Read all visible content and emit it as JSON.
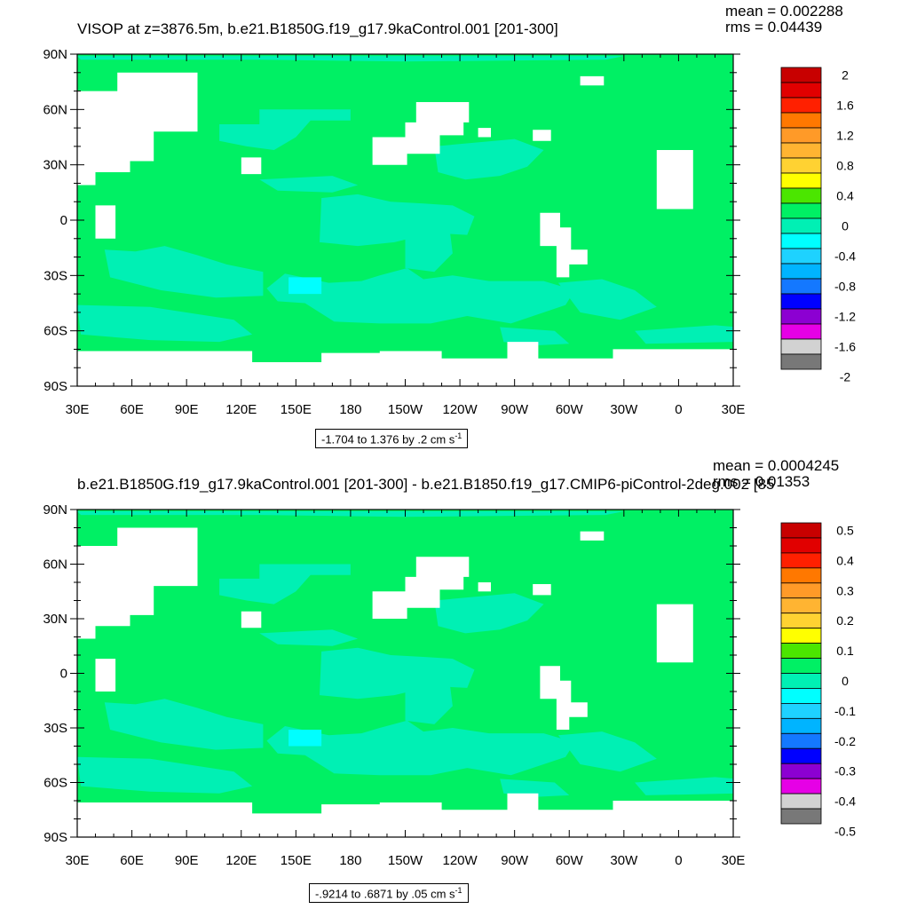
{
  "chart_data": [
    {
      "type": "heatmap",
      "map": "global lat-lon filled contour (land masked white)",
      "title": "VISOP at z=3876.5m, b.e21.B1850G.f19_g17.9kaControl.001 [201-300]",
      "stats": {
        "mean": "mean = 0.002288",
        "rms": "rms = 0.04439"
      },
      "x_ticks": [
        "30E",
        "60E",
        "90E",
        "120E",
        "150E",
        "180",
        "150W",
        "120W",
        "90W",
        "60W",
        "30W",
        "0",
        "30E"
      ],
      "y_ticks": [
        "90N",
        "60N",
        "30N",
        "0",
        "30S",
        "60S",
        "90S"
      ],
      "contour_info": {
        "text": "-1.704 to 1.376 by .2 cm s",
        "exp": "-1"
      },
      "colorbar_labels": [
        "2",
        "1.6",
        "1.2",
        "0.8",
        "0.4",
        "0",
        "-0.4",
        "-0.8",
        "-1.2",
        "-1.6",
        "-2"
      ],
      "colorbar_colors": [
        "#c80000",
        "#e10000",
        "#ff2000",
        "#ff7800",
        "#ff9a28",
        "#ffb432",
        "#ffd232",
        "#ffff00",
        "#4be600",
        "#00f064",
        "#00f0b4",
        "#00ffff",
        "#1ed2ff",
        "#00b4ff",
        "#1478ff",
        "#0000ff",
        "#8c00d2",
        "#e600e6",
        "#d2d2d2",
        "#787878"
      ],
      "dominant_value_range": "0 to -0.4"
    },
    {
      "type": "heatmap",
      "map": "global lat-lon filled contour (land masked white)",
      "title": "b.e21.B1850G.f19_g17.9kaControl.001 [201-300] - b.e21.B1850.f19_g17.CMIP6-piControl-2deg.002 [85",
      "stats": {
        "mean": "mean = 0.0004245",
        "rms": "rms = 0.01353"
      },
      "x_ticks": [
        "30E",
        "60E",
        "90E",
        "120E",
        "150E",
        "180",
        "150W",
        "120W",
        "90W",
        "60W",
        "30W",
        "0",
        "30E"
      ],
      "y_ticks": [
        "90N",
        "60N",
        "30N",
        "0",
        "30S",
        "60S",
        "90S"
      ],
      "contour_info": {
        "text": "-.9214 to .6871 by .05 cm s",
        "exp": "-1"
      },
      "colorbar_labels": [
        "0.5",
        "0.4",
        "0.3",
        "0.2",
        "0.1",
        "0",
        "-0.1",
        "-0.2",
        "-0.3",
        "-0.4",
        "-0.5"
      ],
      "colorbar_colors": [
        "#c80000",
        "#e10000",
        "#ff2000",
        "#ff7800",
        "#ff9a28",
        "#ffb432",
        "#ffd232",
        "#ffff00",
        "#4be600",
        "#00f064",
        "#00f0b4",
        "#00ffff",
        "#1ed2ff",
        "#00b4ff",
        "#1478ff",
        "#0000ff",
        "#8c00d2",
        "#e600e6",
        "#d2d2d2",
        "#787878"
      ],
      "dominant_value_range": "0 to -0.05"
    }
  ],
  "colors": {
    "ocean_base": "#00f064",
    "ocean_neg": "#00f0b4",
    "ocean_neg2": "#00ffff",
    "land": "#ffffff"
  }
}
